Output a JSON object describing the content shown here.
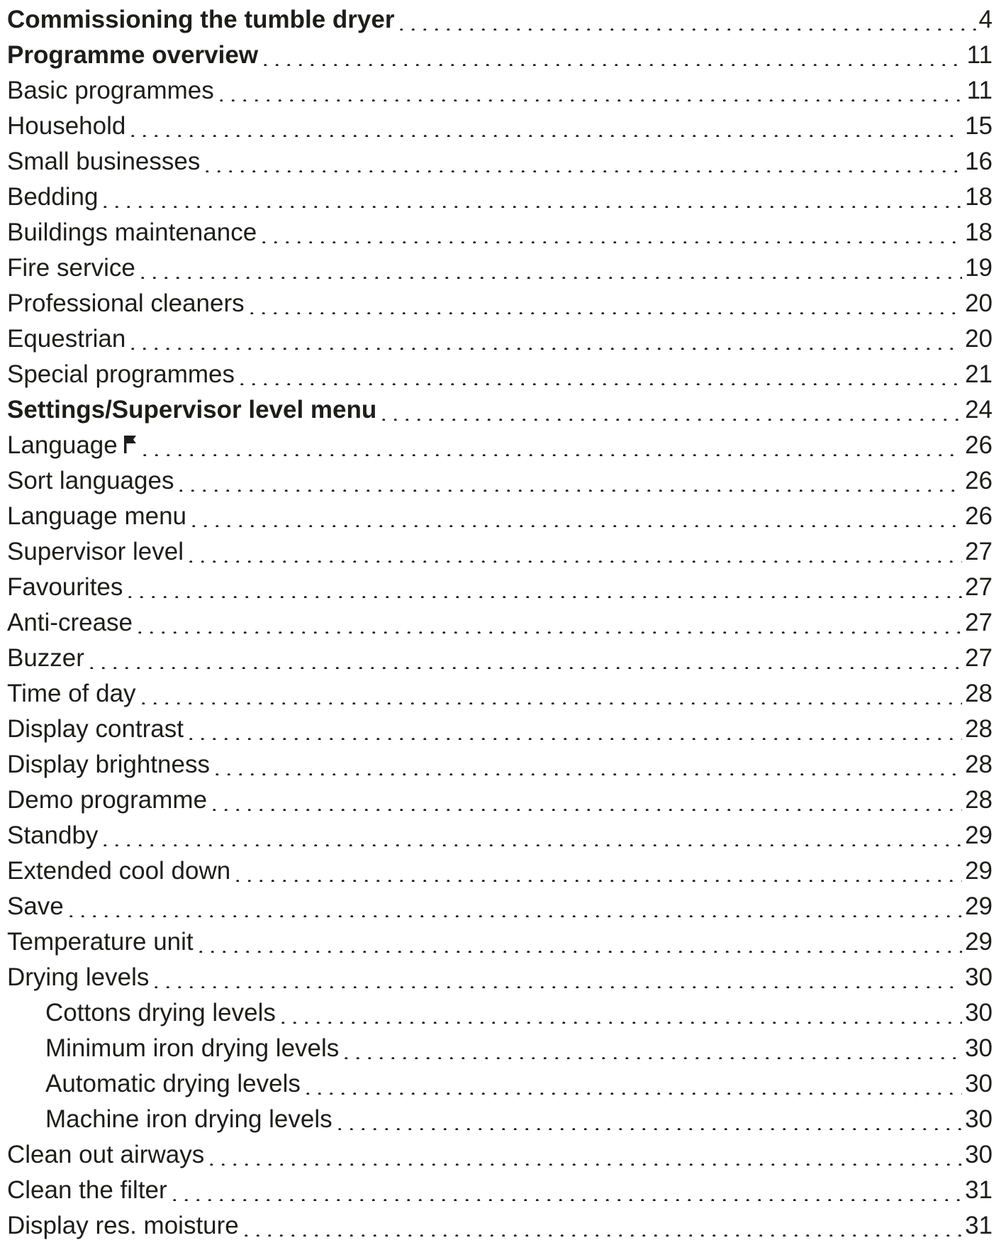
{
  "toc": {
    "entries": [
      {
        "label": "Commissioning the tumble dryer",
        "page": "4",
        "level": "heading"
      },
      {
        "label": "Programme overview",
        "page": "11",
        "level": "heading"
      },
      {
        "label": "Basic programmes",
        "page": "11",
        "level": "item"
      },
      {
        "label": "Household",
        "page": "15",
        "level": "item"
      },
      {
        "label": "Small businesses",
        "page": "16",
        "level": "item"
      },
      {
        "label": "Bedding",
        "page": "18",
        "level": "item"
      },
      {
        "label": "Buildings maintenance",
        "page": "18",
        "level": "item"
      },
      {
        "label": "Fire service",
        "page": "19",
        "level": "item"
      },
      {
        "label": "Professional cleaners",
        "page": "20",
        "level": "item"
      },
      {
        "label": "Equestrian",
        "page": "20",
        "level": "item"
      },
      {
        "label": "Special programmes",
        "page": "21",
        "level": "item"
      },
      {
        "label": "Settings/Supervisor level menu",
        "page": "24",
        "level": "heading"
      },
      {
        "label": "Language",
        "page": "26",
        "level": "item",
        "icon": "flag-icon"
      },
      {
        "label": "Sort languages",
        "page": "26",
        "level": "item"
      },
      {
        "label": "Language menu",
        "page": "26",
        "level": "item"
      },
      {
        "label": "Supervisor level",
        "page": "27",
        "level": "item"
      },
      {
        "label": "Favourites",
        "page": "27",
        "level": "item"
      },
      {
        "label": "Anti-crease",
        "page": "27",
        "level": "item"
      },
      {
        "label": "Buzzer",
        "page": "27",
        "level": "item"
      },
      {
        "label": "Time of day",
        "page": "28",
        "level": "item"
      },
      {
        "label": "Display contrast",
        "page": "28",
        "level": "item"
      },
      {
        "label": "Display brightness",
        "page": "28",
        "level": "item"
      },
      {
        "label": "Demo programme",
        "page": "28",
        "level": "item"
      },
      {
        "label": "Standby",
        "page": "29",
        "level": "item"
      },
      {
        "label": "Extended cool down",
        "page": "29",
        "level": "item"
      },
      {
        "label": "Save",
        "page": "29",
        "level": "item"
      },
      {
        "label": "Temperature unit",
        "page": "29",
        "level": "item"
      },
      {
        "label": "Drying levels",
        "page": "30",
        "level": "item"
      },
      {
        "label": "Cottons drying levels",
        "page": "30",
        "level": "sub"
      },
      {
        "label": "Minimum iron drying levels",
        "page": "30",
        "level": "sub"
      },
      {
        "label": "Automatic drying levels",
        "page": "30",
        "level": "sub"
      },
      {
        "label": "Machine iron drying levels",
        "page": "30",
        "level": "sub"
      },
      {
        "label": "Clean out airways",
        "page": "30",
        "level": "item"
      },
      {
        "label": "Clean the filter",
        "page": "31",
        "level": "item"
      },
      {
        "label": "Display res. moisture",
        "page": "31",
        "level": "item"
      }
    ]
  },
  "colors": {
    "text": "#1d1d1b",
    "background": "#ffffff"
  }
}
